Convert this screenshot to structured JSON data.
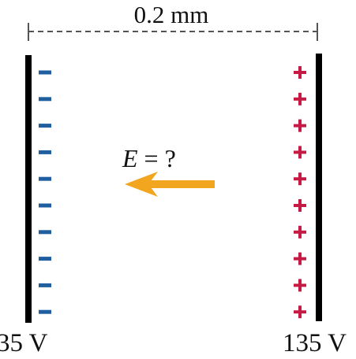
{
  "diagram": {
    "gap_label": "0.2 mm",
    "field_label": "E = ?",
    "left_plate_label": "35 V",
    "right_plate_label": "135 V",
    "negative_sign": "−",
    "positive_sign": "+",
    "negative_charge_count": 10,
    "positive_charge_count": 10,
    "colors": {
      "plate": "#000000",
      "negative_charge": "#1f5fa0",
      "positive_charge": "#c41a44",
      "field_arrow": "#f2a51f",
      "dimension_line": "#555555"
    },
    "icons": {
      "field_arrow": "arrow-left-icon"
    }
  }
}
